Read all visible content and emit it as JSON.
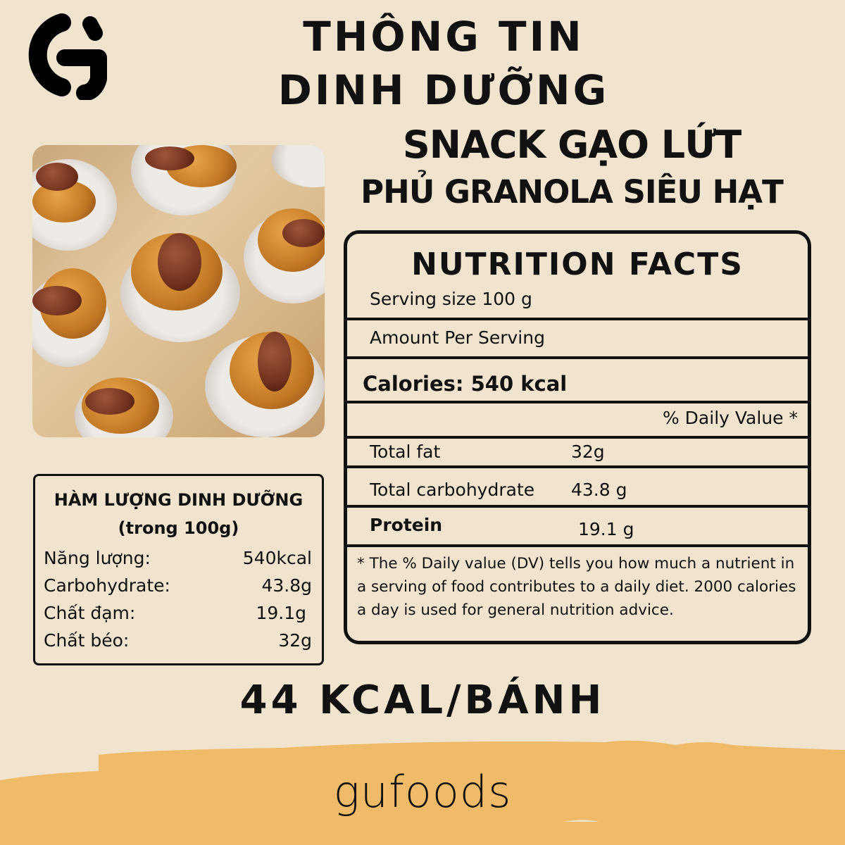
{
  "brand": {
    "logo_letter": "G",
    "name": "gufoods"
  },
  "header": {
    "line1": "THÔNG TIN",
    "line2": "DINH DƯỠNG"
  },
  "product": {
    "line1": "SNACK GẠO LỨT",
    "line2": "PHỦ GRANOLA SIÊU HẠT"
  },
  "nutrition_facts": {
    "title": "NUTRITION FACTS",
    "serving": "Serving size 100 g",
    "amount": "Amount Per Serving",
    "calories": "Calories: 540 kcal",
    "daily_value": "% Daily Value *",
    "rows": [
      {
        "label": "Total fat",
        "value": "32g"
      },
      {
        "label": "Total carbohydrate",
        "value": "43.8 g"
      },
      {
        "label": "Protein",
        "value": "19.1 g"
      }
    ],
    "footnote": "* The % Daily value (DV) tells you how much a nutrient in a serving of food contributes to a daily diet. 2000 calories a day is used for general nutrition advice."
  },
  "summary": {
    "title": "HÀM LƯỢNG DINH DƯỠNG",
    "subtitle": "(trong 100g)",
    "rows": [
      {
        "label": "Năng lượng:",
        "value": "540kcal"
      },
      {
        "label": "Carbohydrate:",
        "value": "43.8g"
      },
      {
        "label": "Chất đạm:",
        "value": "19.1g"
      },
      {
        "label": "Chất béo:",
        "value": "32g"
      }
    ]
  },
  "per_piece": "44 KCAL/BÁNH",
  "colors": {
    "background": "#f1e4cf",
    "accent": "#f0bb68",
    "text": "#111111"
  }
}
